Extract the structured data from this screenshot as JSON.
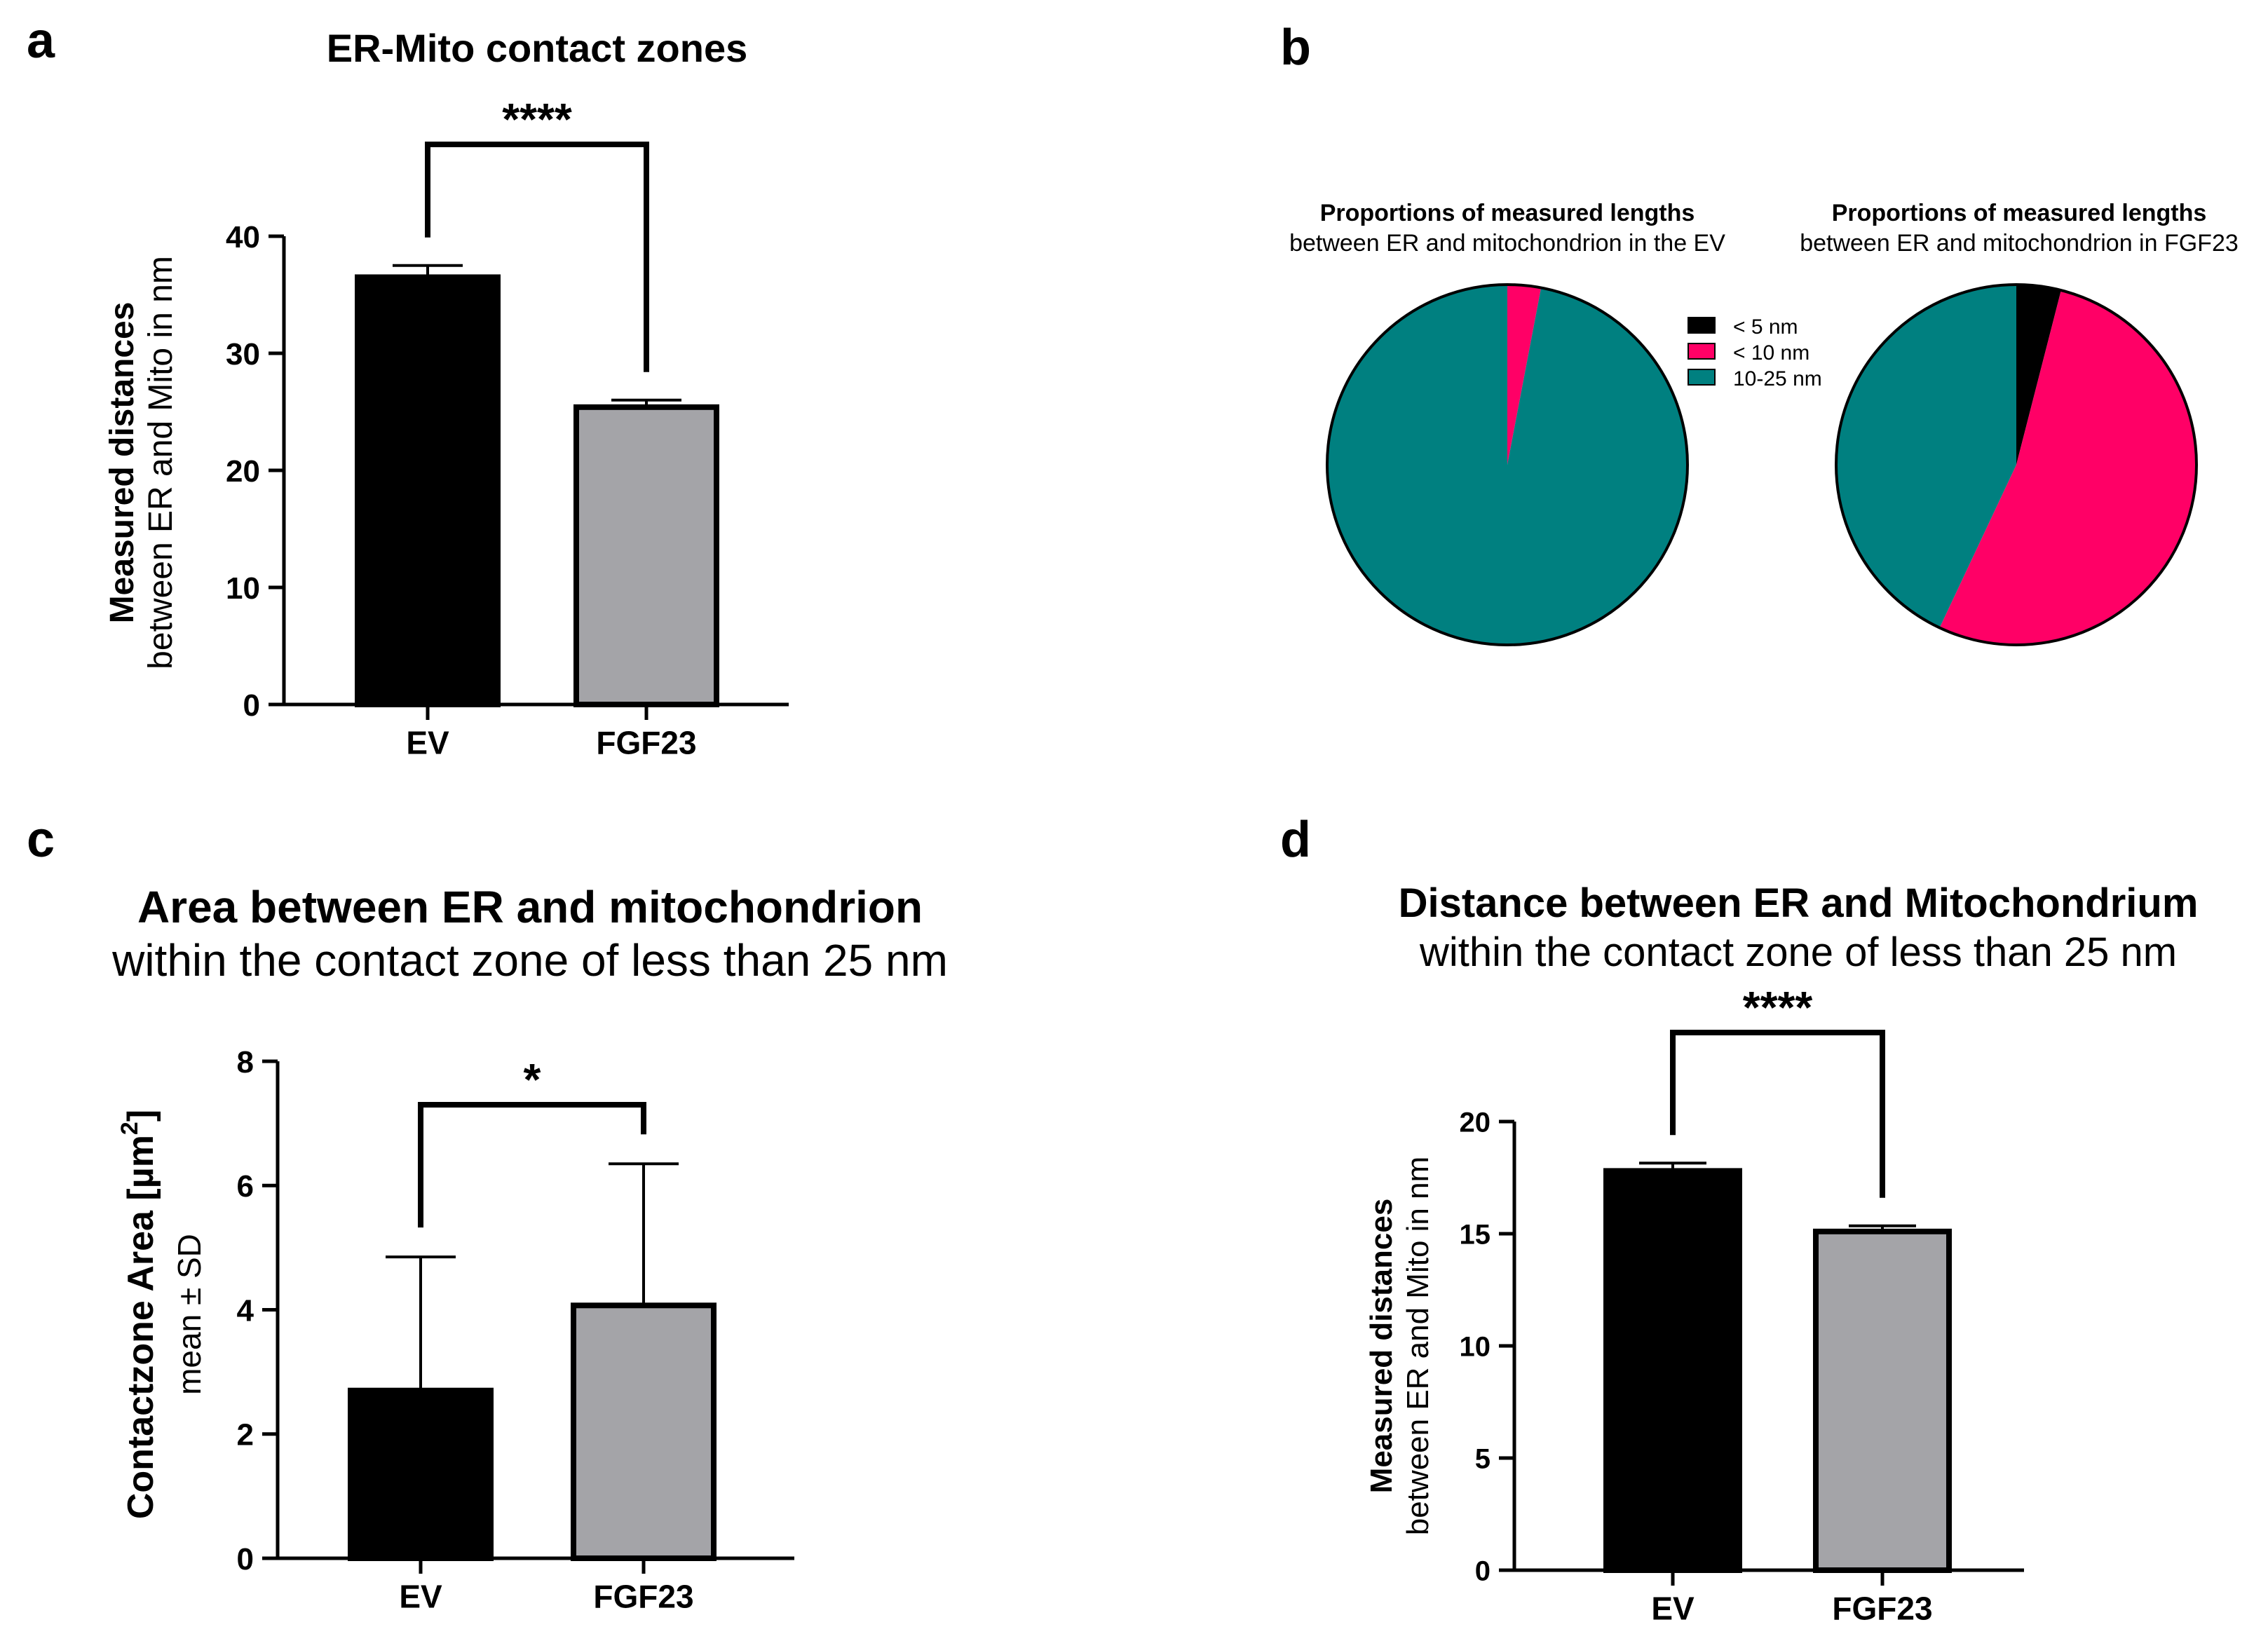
{
  "colors": {
    "ev": "#000000",
    "fgf23": "#a4a4a8",
    "lt5": "#000000",
    "lt10": "#ff0066",
    "range10_25": "#008080"
  },
  "chart_data": [
    {
      "panel": "a",
      "type": "bar",
      "title": "ER-Mito contact zones",
      "ylabel_bold": "Measured distances",
      "ylabel": "between ER and Mito in nm",
      "categories": [
        "EV",
        "FGF23"
      ],
      "values": [
        36.5,
        25.4
      ],
      "errors": [
        1.0,
        0.6
      ],
      "ylim": [
        0,
        40
      ],
      "yticks": [
        0,
        10,
        20,
        30,
        40
      ],
      "significance": "****"
    },
    {
      "panel": "b",
      "type": "pie",
      "legend": [
        "< 5 nm",
        "< 10 nm",
        "10-25 nm"
      ],
      "pies": [
        {
          "title_bold": "Proportions of measured lengths",
          "title": "between ER and mitochondrion in the EV",
          "values": [
            0,
            3,
            97
          ]
        },
        {
          "title_bold": "Proportions of measured lengths",
          "title": "between ER and mitochondrion in FGF23",
          "values": [
            4,
            53,
            43
          ]
        }
      ]
    },
    {
      "panel": "c",
      "type": "bar",
      "title": "Area between ER and mitochondrion",
      "subtitle": "within the contact zone of less than 25 nm",
      "ylabel_bold": "Contactzone Area [µm",
      "ylabel_sup": "2",
      "ylabel_close": "]",
      "ylabel": "mean ± SD",
      "categories": [
        "EV",
        "FGF23"
      ],
      "values": [
        2.7,
        4.07
      ],
      "errors": [
        2.15,
        2.28
      ],
      "ylim": [
        0,
        8
      ],
      "yticks": [
        0,
        2,
        4,
        6,
        8
      ],
      "significance": "*"
    },
    {
      "panel": "d",
      "type": "bar",
      "title": "Distance between ER and Mitochondrium",
      "subtitle": "within the contact zone of less than 25 nm",
      "ylabel_bold": "Measured distances",
      "ylabel": "between ER and Mito in nm",
      "categories": [
        "EV",
        "FGF23"
      ],
      "values": [
        17.8,
        15.1
      ],
      "errors": [
        0.35,
        0.25
      ],
      "ylim": [
        0,
        20
      ],
      "yticks": [
        0,
        5,
        10,
        15,
        20
      ],
      "significance": "****"
    }
  ]
}
